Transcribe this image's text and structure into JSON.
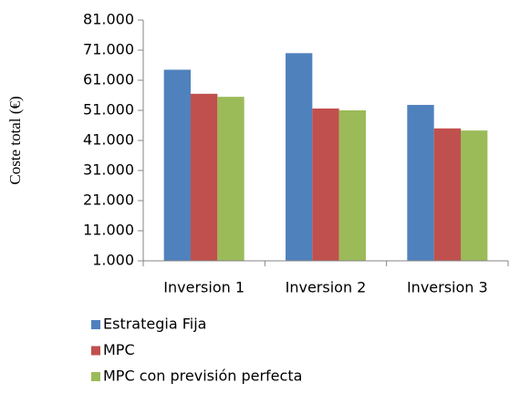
{
  "chart_data": {
    "type": "bar",
    "y_label": "Coste total (€)",
    "categories": [
      "Inversion 1",
      "Inversion 2",
      "Inversion 3"
    ],
    "series": [
      {
        "name": "Estrategia Fija",
        "color": "#4f81bd",
        "values": [
          64500,
          70000,
          52800
        ]
      },
      {
        "name": "MPC",
        "color": "#c0504d",
        "values": [
          56500,
          51600,
          45000
        ]
      },
      {
        "name": "MPC con previsión perfecta",
        "color": "#9bbb59",
        "values": [
          55500,
          51000,
          44300
        ]
      }
    ],
    "ylim": [
      1000,
      81000
    ],
    "yticks": [
      {
        "value": 1000,
        "label": "1.000"
      },
      {
        "value": 11000,
        "label": "11.000"
      },
      {
        "value": 21000,
        "label": "21.000"
      },
      {
        "value": 31000,
        "label": "31.000"
      },
      {
        "value": 41000,
        "label": "41.000"
      },
      {
        "value": 51000,
        "label": "51.000"
      },
      {
        "value": 61000,
        "label": "61.000"
      },
      {
        "value": 71000,
        "label": "71.000"
      },
      {
        "value": 81000,
        "label": "81.000"
      }
    ],
    "grid": false
  }
}
